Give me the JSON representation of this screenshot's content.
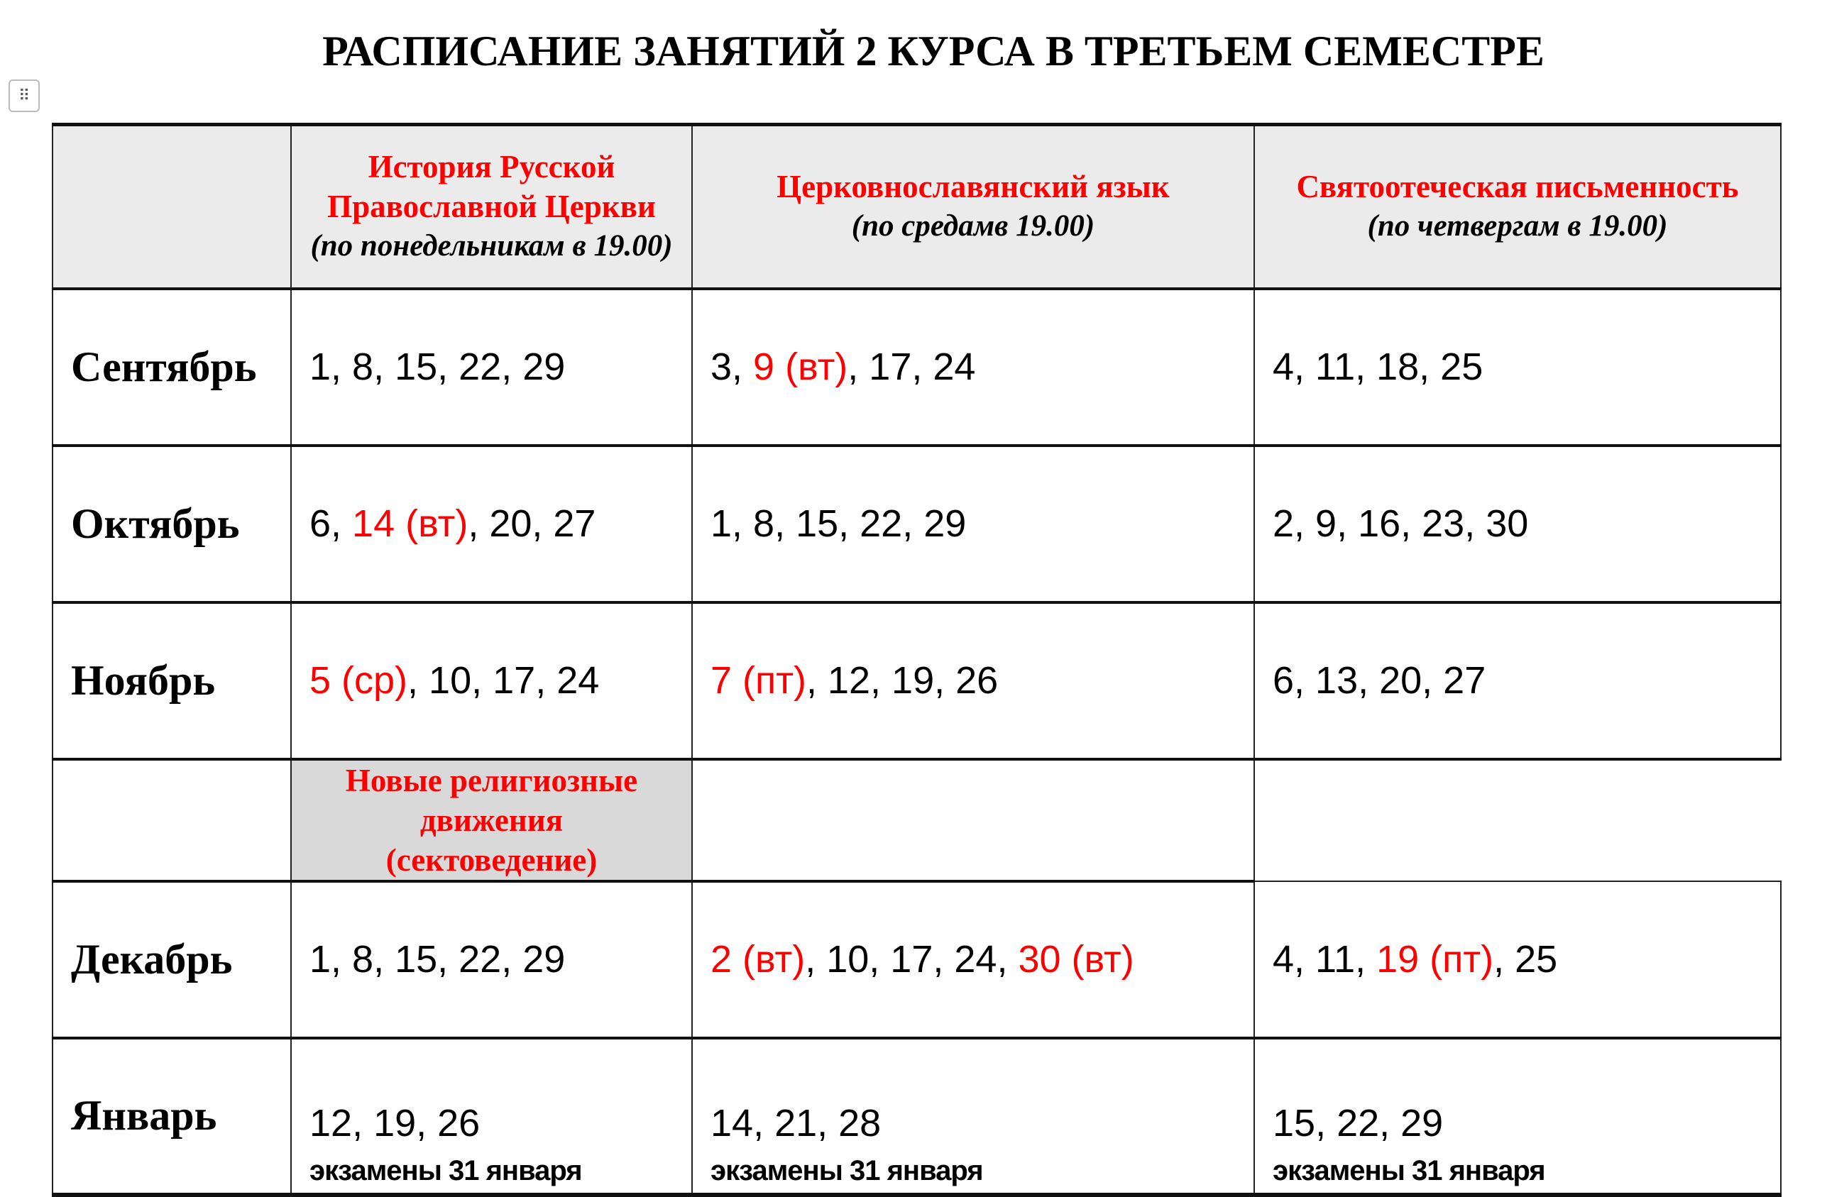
{
  "title": "РАСПИСАНИЕ ЗАНЯТИЙ 2 КУРСА В ТРЕТЬЕМ СЕМЕСТРЕ",
  "handle_icon": "drag-handle-icon",
  "colors": {
    "accent_red": "#ff0000",
    "header_bg": "#ebebeb",
    "section_bg": "#d9d9d9"
  },
  "columns": [
    {
      "subject": "История Русской Православной Церкви",
      "schedule": "(по понедельникам в 19.00)"
    },
    {
      "subject": "Церковнославянский язык",
      "schedule": "(по средамв 19.00)"
    },
    {
      "subject": "Святоотеческая письменность",
      "schedule": "(по четвергам в 19.00)"
    }
  ],
  "section_header": {
    "subject": "Новые религиозные движения",
    "subtitle": "(сектоведение)"
  },
  "rows": [
    {
      "month": "Сентябрь",
      "cells": [
        [
          {
            "t": "1, 8, 15, 22, 29"
          }
        ],
        [
          {
            "t": "3, "
          },
          {
            "t": "9 (вт)",
            "red": true
          },
          {
            "t": ", 17, 24"
          }
        ],
        [
          {
            "t": "4, 11, 18, 25"
          }
        ]
      ]
    },
    {
      "month": "Октябрь",
      "cells": [
        [
          {
            "t": "6, "
          },
          {
            "t": "14 (вт)",
            "red": true
          },
          {
            "t": ", 20, 27"
          }
        ],
        [
          {
            "t": "1, 8, 15, 22, 29"
          }
        ],
        [
          {
            "t": "2, 9, 16, 23, 30"
          }
        ]
      ]
    },
    {
      "month": "Ноябрь",
      "cells": [
        [
          {
            "t": "5 (ср)",
            "red": true
          },
          {
            "t": ", 10, 17, 24"
          }
        ],
        [
          {
            "t": "7 (пт)",
            "red": true
          },
          {
            "t": ", 12, 19, 26"
          }
        ],
        [
          {
            "t": "6, 13, 20, 27"
          }
        ]
      ]
    },
    {
      "month": "Декабрь",
      "cells": [
        [
          {
            "t": "1, 8, 15, 22, 29"
          }
        ],
        [
          {
            "t": "2 (вт)",
            "red": true
          },
          {
            "t": ", 10, 17, 24, "
          },
          {
            "t": "30 (вт)",
            "red": true
          }
        ],
        [
          {
            "t": "4, 11, "
          },
          {
            "t": "19 (пт)",
            "red": true
          },
          {
            "t": ", 25"
          }
        ]
      ]
    },
    {
      "month": "Январь",
      "cells": [
        [
          {
            "t": "12, 19, 26"
          }
        ],
        [
          {
            "t": "14, 21, 28"
          }
        ],
        [
          {
            "t": "15, 22, 29"
          }
        ]
      ],
      "exam": [
        "экзамены 31 января",
        "экзамены 31 января",
        "экзамены 31 января"
      ]
    }
  ]
}
